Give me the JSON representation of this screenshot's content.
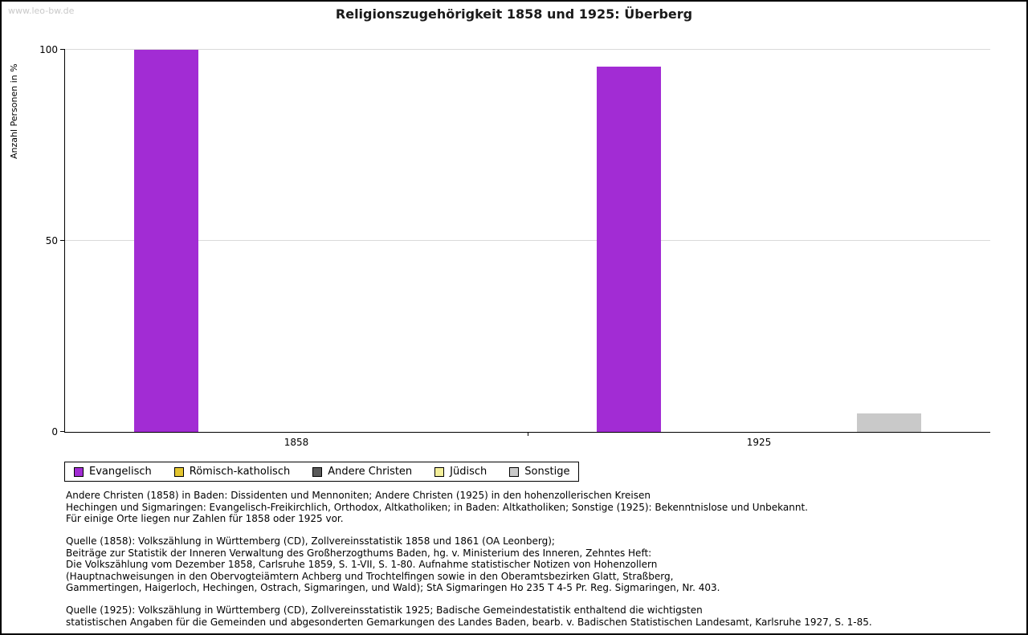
{
  "watermark": "www.leo-bw.de",
  "chart_data": {
    "type": "bar",
    "title": "Religionszugehörigkeit 1858 und 1925: Überberg",
    "ylabel": "Anzahl Personen in %",
    "ylim": [
      0,
      100
    ],
    "yticks": [
      0,
      50,
      100
    ],
    "grid": "horizontal",
    "legend_position": "bottom-left",
    "categories": [
      "1858",
      "1925"
    ],
    "series": [
      {
        "name": "Evangelisch",
        "color": "#a22cd4",
        "values": [
          100,
          95.6
        ]
      },
      {
        "name": "Römisch-katholisch",
        "color": "#e3c52f",
        "values": [
          0,
          0
        ]
      },
      {
        "name": "Andere Christen",
        "color": "#5a5a5a",
        "values": [
          0,
          0
        ]
      },
      {
        "name": "Jüdisch",
        "color": "#f4ef9a",
        "values": [
          0,
          0
        ]
      },
      {
        "name": "Sonstige",
        "color": "#c9c9c9",
        "values": [
          0,
          4.8
        ]
      }
    ]
  },
  "notes": [
    "Andere Christen (1858) in Baden: Dissidenten und Mennoniten; Andere Christen (1925) in den hohenzollerischen Kreisen\nHechingen und Sigmaringen: Evangelisch-Freikirchlich, Orthodox, Altkatholiken; in Baden: Altkatholiken; Sonstige (1925): Bekenntnislose und Unbekannt.\nFür einige Orte liegen nur Zahlen für 1858 oder 1925 vor.",
    "Quelle (1858): Volkszählung in Württemberg (CD), Zollvereinsstatistik 1858 und 1861 (OA Leonberg);\nBeiträge zur Statistik der Inneren Verwaltung des Großherzogthums Baden, hg. v. Ministerium des Inneren, Zehntes Heft:\nDie Volkszählung vom Dezember 1858, Carlsruhe 1859, S. 1-VII, S. 1-80. Aufnahme statistischer Notizen von Hohenzollern\n(Hauptnachweisungen in den Obervogteiämtern Achberg und Trochtelfingen sowie in den Oberamtsbezirken Glatt, Straßberg,\nGammertingen, Haigerloch, Hechingen, Ostrach, Sigmaringen, und Wald); StA Sigmaringen Ho 235 T 4-5 Pr. Reg. Sigmaringen, Nr. 403.",
    "Quelle (1925): Volkszählung in Württemberg (CD), Zollvereinsstatistik 1925; Badische Gemeindestatistik enthaltend die wichtigsten\nstatistischen Angaben für die Gemeinden und abgesonderten Gemarkungen des Landes Baden, bearb. v. Badischen Statistischen Landesamt, Karlsruhe 1927, S. 1-85."
  ]
}
